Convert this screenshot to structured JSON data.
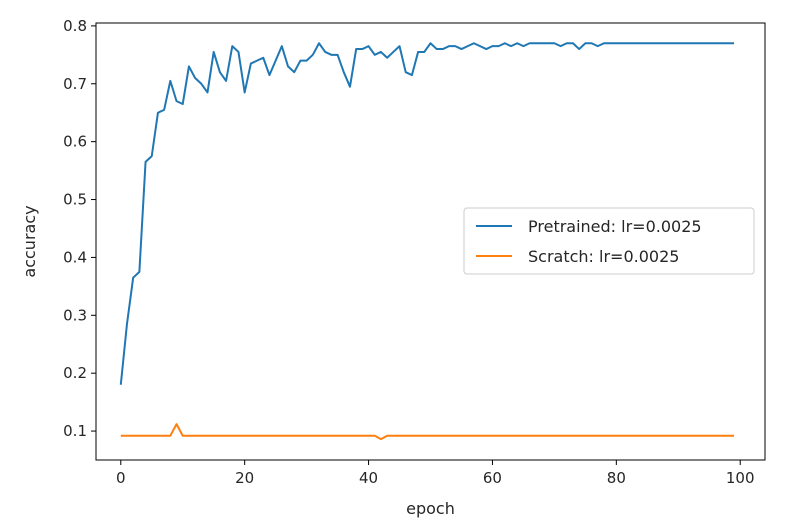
{
  "chart_data": {
    "type": "line",
    "title": "",
    "xlabel": "epoch",
    "ylabel": "accuracy",
    "xlim": [
      -4,
      104
    ],
    "ylim": [
      0.05,
      0.805
    ],
    "xticks": [
      0,
      20,
      40,
      60,
      80,
      100
    ],
    "yticks": [
      0.1,
      0.2,
      0.3,
      0.4,
      0.5,
      0.6,
      0.7,
      0.8
    ],
    "xtick_labels": [
      "0",
      "20",
      "40",
      "60",
      "80",
      "100"
    ],
    "ytick_labels": [
      "0.1",
      "0.2",
      "0.3",
      "0.4",
      "0.5",
      "0.6",
      "0.7",
      "0.8"
    ],
    "grid": false,
    "legend_position": "center-right",
    "series": [
      {
        "name": "Pretrained: lr=0.0025",
        "color": "#1f77b4",
        "x": [
          0,
          1,
          2,
          3,
          4,
          5,
          6,
          7,
          8,
          9,
          10,
          11,
          12,
          13,
          14,
          15,
          16,
          17,
          18,
          19,
          20,
          21,
          22,
          23,
          24,
          25,
          26,
          27,
          28,
          29,
          30,
          31,
          32,
          33,
          34,
          35,
          36,
          37,
          38,
          39,
          40,
          41,
          42,
          43,
          44,
          45,
          46,
          47,
          48,
          49,
          50,
          51,
          52,
          53,
          54,
          55,
          56,
          57,
          58,
          59,
          60,
          61,
          62,
          63,
          64,
          65,
          66,
          67,
          68,
          69,
          70,
          71,
          72,
          73,
          74,
          75,
          76,
          77,
          78,
          79,
          80,
          81,
          82,
          83,
          84,
          85,
          86,
          87,
          88,
          89,
          90,
          91,
          92,
          93,
          94,
          95,
          96,
          97,
          98,
          99
        ],
        "y": [
          0.18,
          0.285,
          0.365,
          0.375,
          0.565,
          0.575,
          0.65,
          0.655,
          0.705,
          0.67,
          0.665,
          0.73,
          0.71,
          0.7,
          0.685,
          0.755,
          0.72,
          0.705,
          0.765,
          0.755,
          0.685,
          0.735,
          0.74,
          0.745,
          0.715,
          0.74,
          0.765,
          0.73,
          0.72,
          0.74,
          0.74,
          0.75,
          0.77,
          0.755,
          0.75,
          0.75,
          0.72,
          0.695,
          0.76,
          0.76,
          0.765,
          0.75,
          0.755,
          0.745,
          0.755,
          0.765,
          0.72,
          0.715,
          0.755,
          0.755,
          0.77,
          0.76,
          0.76,
          0.765,
          0.765,
          0.76,
          0.765,
          0.77,
          0.765,
          0.76,
          0.765,
          0.765,
          0.77,
          0.765,
          0.77,
          0.765,
          0.77,
          0.77,
          0.77,
          0.77,
          0.77,
          0.765,
          0.77,
          0.77,
          0.76,
          0.77,
          0.77,
          0.765,
          0.77,
          0.77,
          0.77,
          0.77,
          0.77,
          0.77,
          0.77,
          0.77,
          0.77,
          0.77,
          0.77,
          0.77,
          0.77,
          0.77,
          0.77,
          0.77,
          0.77,
          0.77,
          0.77,
          0.77,
          0.77,
          0.77
        ]
      },
      {
        "name": "Scratch: lr=0.0025",
        "color": "#ff7f0e",
        "x": [
          0,
          1,
          2,
          3,
          4,
          5,
          6,
          7,
          8,
          9,
          10,
          11,
          12,
          13,
          14,
          15,
          16,
          17,
          18,
          19,
          20,
          21,
          22,
          23,
          24,
          25,
          26,
          27,
          28,
          29,
          30,
          31,
          32,
          33,
          34,
          35,
          36,
          37,
          38,
          39,
          40,
          41,
          42,
          43,
          44,
          45,
          46,
          47,
          48,
          49,
          50,
          51,
          52,
          53,
          54,
          55,
          56,
          57,
          58,
          59,
          60,
          61,
          62,
          63,
          64,
          65,
          66,
          67,
          68,
          69,
          70,
          71,
          72,
          73,
          74,
          75,
          76,
          77,
          78,
          79,
          80,
          81,
          82,
          83,
          84,
          85,
          86,
          87,
          88,
          89,
          90,
          91,
          92,
          93,
          94,
          95,
          96,
          97,
          98,
          99
        ],
        "y": [
          0.092,
          0.092,
          0.092,
          0.092,
          0.092,
          0.092,
          0.092,
          0.092,
          0.092,
          0.112,
          0.092,
          0.092,
          0.092,
          0.092,
          0.092,
          0.092,
          0.092,
          0.092,
          0.092,
          0.092,
          0.092,
          0.092,
          0.092,
          0.092,
          0.092,
          0.092,
          0.092,
          0.092,
          0.092,
          0.092,
          0.092,
          0.092,
          0.092,
          0.092,
          0.092,
          0.092,
          0.092,
          0.092,
          0.092,
          0.092,
          0.092,
          0.092,
          0.086,
          0.092,
          0.092,
          0.092,
          0.092,
          0.092,
          0.092,
          0.092,
          0.092,
          0.092,
          0.092,
          0.092,
          0.092,
          0.092,
          0.092,
          0.092,
          0.092,
          0.092,
          0.092,
          0.092,
          0.092,
          0.092,
          0.092,
          0.092,
          0.092,
          0.092,
          0.092,
          0.092,
          0.092,
          0.092,
          0.092,
          0.092,
          0.092,
          0.092,
          0.092,
          0.092,
          0.092,
          0.092,
          0.092,
          0.092,
          0.092,
          0.092,
          0.092,
          0.092,
          0.092,
          0.092,
          0.092,
          0.092,
          0.092,
          0.092,
          0.092,
          0.092,
          0.092,
          0.092,
          0.092,
          0.092,
          0.092,
          0.092
        ]
      }
    ]
  }
}
